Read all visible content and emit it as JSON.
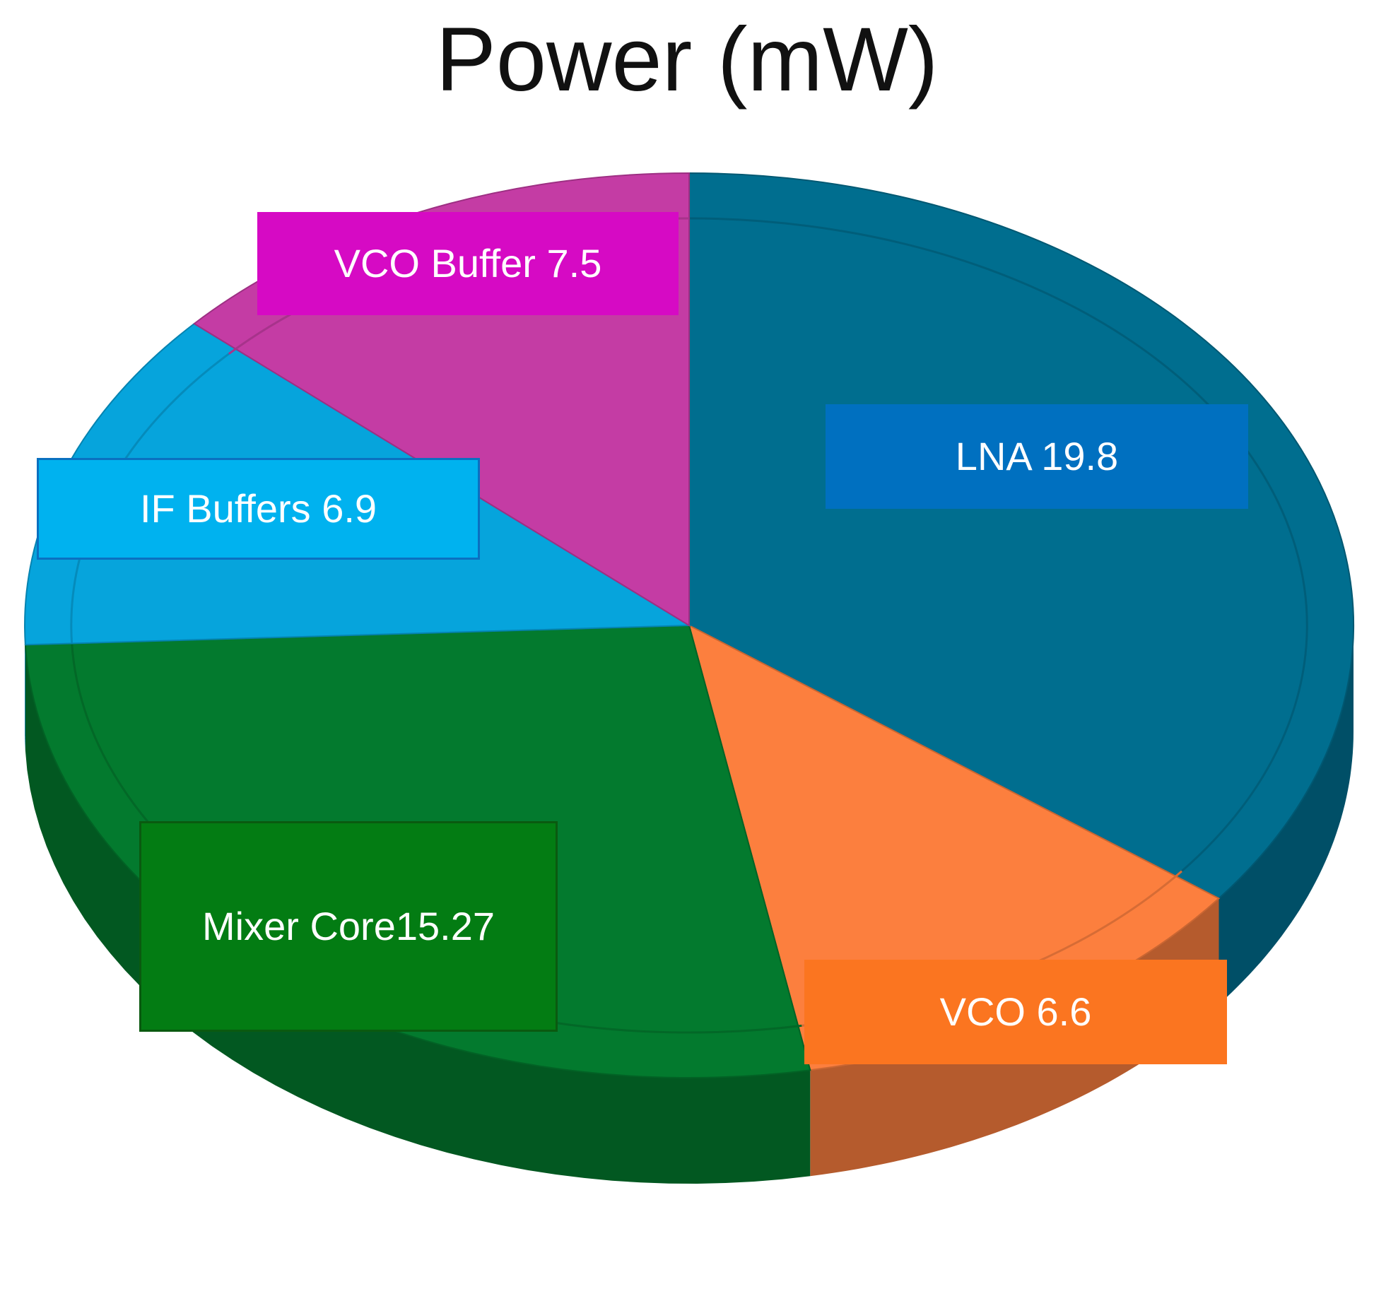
{
  "chart_data": {
    "type": "pie",
    "title": "Power (mW)",
    "slices": [
      {
        "label": "LNA",
        "value": 19.8,
        "color": "#006e8f",
        "label_color": "#0070c0"
      },
      {
        "label": "VCO",
        "value": 6.6,
        "color": "#fc7f3e",
        "label_color": "#fb7520"
      },
      {
        "label": "Mixer Core",
        "value": 15.27,
        "color": "#037a2e",
        "label_color": "#037c13"
      },
      {
        "label": "IF Buffers",
        "value": 6.9,
        "color": "#06a4dc",
        "label_color": "#00b2ef"
      },
      {
        "label": "VCO Buffer",
        "value": 7.5,
        "color": "#c43ca4",
        "label_color": "#d60ac4"
      }
    ],
    "labels": {
      "lna": "LNA 19.8",
      "vco": "VCO 6.6",
      "mixer_line1": "Mixer Core",
      "mixer_line2": "15.27",
      "if_buffers": "IF Buffers 6.9",
      "vco_buffer": "VCO Buffer 7.5"
    },
    "style": "3d-pie"
  }
}
